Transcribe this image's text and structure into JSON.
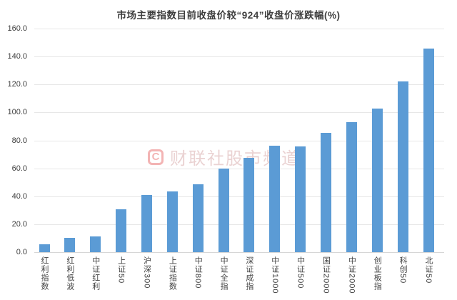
{
  "chart_data": {
    "type": "bar",
    "title": "市场主要指数目前收盘价较“924”收盘价涨跌幅(%)",
    "categories": [
      "红利指数",
      "红利低波",
      "中证红利",
      "上证50",
      "沪深300",
      "上证指数",
      "中证800",
      "中证全指",
      "深证成指",
      "中证1000",
      "中证500",
      "国证2000",
      "中证2000",
      "创业板指",
      "科创50",
      "北证50"
    ],
    "values": [
      5.5,
      10.5,
      11.5,
      30.5,
      41.0,
      43.5,
      48.5,
      60.0,
      67.5,
      76.0,
      75.5,
      85.5,
      93.0,
      103.0,
      122.0,
      145.5
    ],
    "xlabel": "",
    "ylabel": "",
    "ylim": [
      0,
      160
    ],
    "ytick_step": 20,
    "ytick_decimals": 1,
    "grid": true,
    "legend_position": "none",
    "bar_color": "#5b9bd5",
    "grid_color": "#e7e7e7",
    "axis_color": "#d6d6d6",
    "label_color": "#404040"
  },
  "watermark": {
    "logo_letter": "C",
    "text": "财联社股市频道",
    "brand_color": "#e13c3c"
  }
}
